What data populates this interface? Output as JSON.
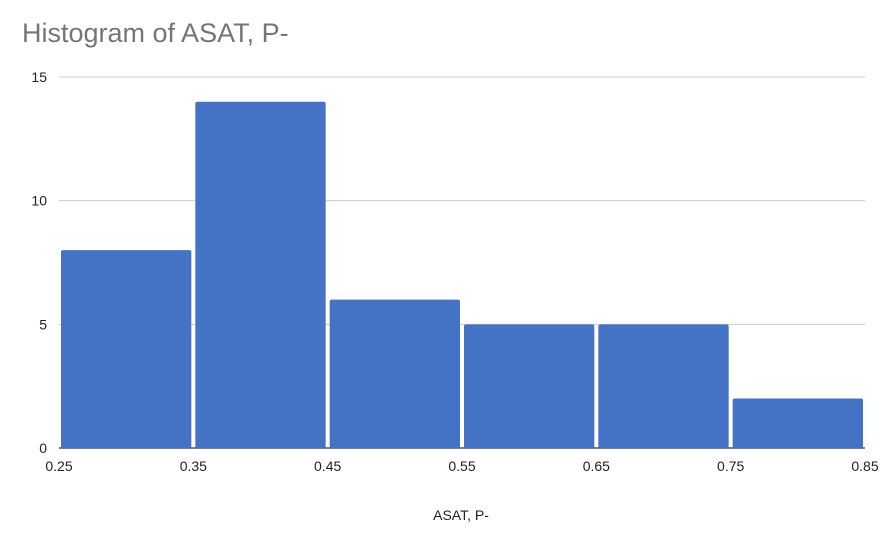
{
  "chart_data": {
    "type": "bar",
    "subtype": "histogram",
    "title": "Histogram of ASAT, P-",
    "xlabel": "ASAT, P-",
    "ylabel": "",
    "bin_edges": [
      0.25,
      0.35,
      0.45,
      0.55,
      0.65,
      0.75,
      0.85
    ],
    "x_tick_labels": [
      "0.25",
      "0.35",
      "0.45",
      "0.55",
      "0.65",
      "0.75",
      "0.85"
    ],
    "values": [
      8,
      14,
      6,
      5,
      5,
      2
    ],
    "xlim": [
      0.25,
      0.85
    ],
    "ylim": [
      0,
      15
    ],
    "y_ticks": [
      0,
      5,
      10,
      15
    ],
    "y_tick_labels": [
      "0",
      "5",
      "10",
      "15"
    ],
    "grid": true,
    "legend": "none",
    "bar_color": "#4472c4",
    "grid_color": "#cccccc",
    "title_color": "#757575"
  }
}
